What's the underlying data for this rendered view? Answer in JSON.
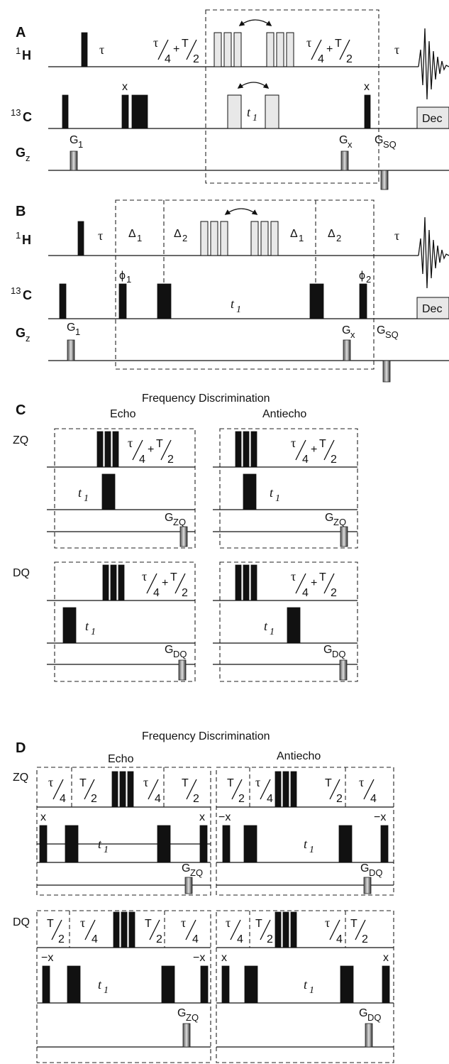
{
  "panels": {
    "A": "A",
    "B": "B",
    "C": "C",
    "D": "D"
  },
  "channels": {
    "h1": "1",
    "h1_main": "H",
    "c13": "13",
    "c13_main": "C",
    "gz": "G",
    "gz_sub": "z"
  },
  "labels": {
    "tau": "τ",
    "t1": "t",
    "t1_sub": "1",
    "x": "x",
    "minus_x": "−x",
    "dec": "Dec",
    "g1": "G",
    "g1_sub": "1",
    "gx": "G",
    "gx_sub": "x",
    "gsq": "G",
    "gsq_sub": "SQ",
    "gzq": "G",
    "gzq_sub": "ZQ",
    "gdq": "G",
    "gdq_sub": "DQ",
    "delta1": "Δ",
    "delta1_sub": "1",
    "delta2": "Δ",
    "delta2_sub": "2",
    "phi1": "ϕ",
    "phi1_sub": "1",
    "phi2": "ϕ",
    "phi2_sub": "2",
    "tau_4": "τ",
    "four": "4",
    "T_2": "T",
    "two": "2",
    "plus": "+",
    "zq": "ZQ",
    "dq": "DQ",
    "freq_disc": "Frequency Discrimination",
    "echo": "Echo",
    "antiecho": "Antiecho"
  },
  "colors": {
    "pulse": "#111111",
    "soft_pulse": "#e8e8e8",
    "dashed": "#222222"
  }
}
